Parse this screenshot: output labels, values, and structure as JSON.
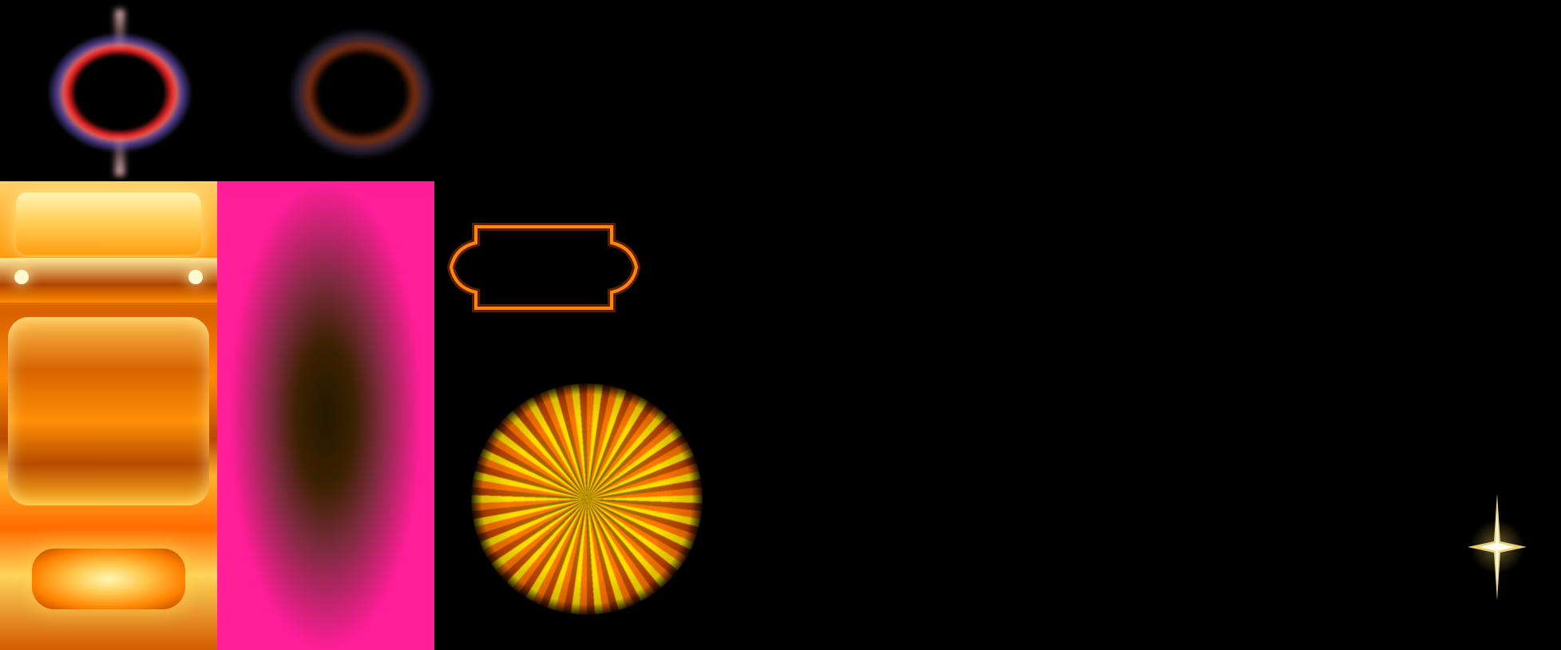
{
  "atlas": {
    "background": "#000000",
    "accent_orange": "#ff8a00",
    "accent_pink": "#ff1d98",
    "frame_glint": "#ebe1b4",
    "ring_red": "#ff2828",
    "ring_violet": "#8c6eff"
  },
  "sprites": {
    "slot_machine": "slot-machine-icon",
    "pink_panel": "pink-glow-panel-icon",
    "ornament_frame": "ornament-frame-icon",
    "starburst": "starburst-icon",
    "sparkle": "sparkle-icon",
    "ring_bright": "glow-ring-bright-icon",
    "ring_dim": "glow-ring-dim-icon"
  }
}
